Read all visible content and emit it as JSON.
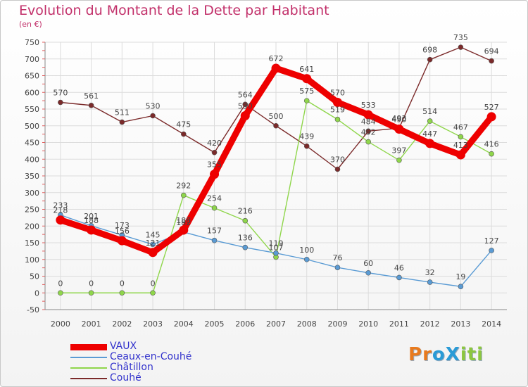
{
  "title": "Evolution du Montant de la Dette par Habitant",
  "subtitle": "(en €)",
  "logo": {
    "text": "ProXiti",
    "letter_colors": [
      "#e87a1e",
      "#e87a1e",
      "#2a9bd6",
      "#2a9bd6",
      "#8cc63f",
      "#8cc63f",
      "#8cc63f"
    ]
  },
  "chart_data": {
    "type": "line",
    "title": "Evolution du Montant de la Dette par Habitant",
    "ylabel": "(en €)",
    "xlabel": "",
    "x": [
      "2000",
      "2001",
      "2002",
      "2003",
      "2004",
      "2005",
      "2006",
      "2007",
      "2008",
      "2009",
      "2010",
      "2011",
      "2012",
      "2013",
      "2014"
    ],
    "ylim": [
      -50,
      750
    ],
    "yticks": [
      -50,
      0,
      50,
      100,
      150,
      200,
      250,
      300,
      350,
      400,
      450,
      500,
      550,
      600,
      650,
      700,
      750
    ],
    "grid": true,
    "legend_position": "bottom-left",
    "series": [
      {
        "name": "Couhé",
        "color": "#7b2a2a",
        "values": [
          570,
          561,
          511,
          530,
          475,
          420,
          564,
          500,
          439,
          370,
          484,
          493,
          698,
          735,
          694
        ]
      },
      {
        "name": "Châtillon",
        "color": "#8fd64b",
        "values": [
          0,
          0,
          0,
          0,
          292,
          254,
          216,
          107,
          575,
          519,
          452,
          397,
          514,
          467,
          416
        ]
      },
      {
        "name": "Ceaux-en-Couhé",
        "color": "#5a9bd4",
        "values": [
          233,
          201,
          173,
          145,
          182,
          157,
          136,
          119,
          100,
          76,
          60,
          46,
          32,
          19,
          127
        ]
      },
      {
        "name": "VAUX",
        "color": "#ee0000",
        "values": [
          218,
          188,
          156,
          121,
          188,
          355,
          530,
          672,
          641,
          570,
          533,
          490,
          447,
          413,
          527
        ]
      }
    ]
  }
}
